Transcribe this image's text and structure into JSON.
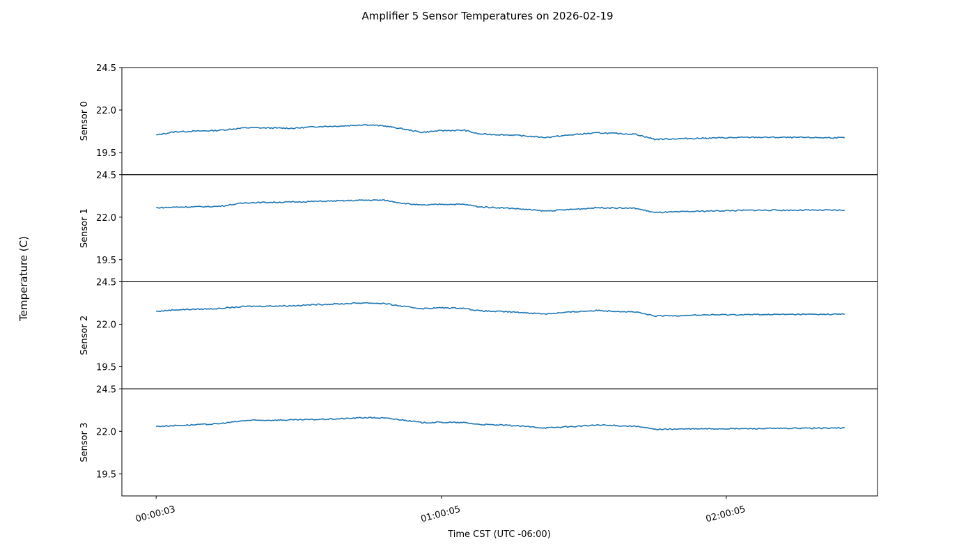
{
  "chart_data": {
    "type": "line",
    "title": "Amplifier 5 Sensor Temperatures on 2026-02-19",
    "xlabel": "Time CST (UTC -06:00)",
    "ylabel": "Temperature (C)",
    "x_ticks": [
      "00:00:03",
      "01:00:05",
      "02:00:05"
    ],
    "y_ticks": [
      "24.5",
      "22.0",
      "19.5"
    ],
    "ylim": [
      18.2,
      24.5
    ],
    "xlim": [
      "-00:07:10",
      "02:31:55"
    ],
    "grid": false,
    "line_color": "#1f77b4",
    "x": [
      "00:00:03",
      "00:04:00",
      "00:13:00",
      "00:19:00",
      "00:29:00",
      "00:34:00",
      "00:39:00",
      "00:44:00",
      "00:48:00",
      "00:52:00",
      "00:56:00",
      "01:00:00",
      "01:05:00",
      "01:08:00",
      "01:15:00",
      "01:22:00",
      "01:29:00",
      "01:33:00",
      "01:41:00",
      "01:45:00",
      "01:56:00",
      "02:06:00",
      "02:25:00"
    ],
    "panels": [
      {
        "label": "Sensor 0",
        "values": [
          20.53,
          20.72,
          20.8,
          20.96,
          20.93,
          21.03,
          21.06,
          21.14,
          21.07,
          20.89,
          20.69,
          20.79,
          20.81,
          20.59,
          20.53,
          20.39,
          20.58,
          20.66,
          20.58,
          20.28,
          20.35,
          20.4,
          20.37
        ]
      },
      {
        "label": "Sensor 1",
        "values": [
          22.55,
          22.59,
          22.63,
          22.85,
          22.89,
          22.93,
          22.96,
          23.0,
          23.0,
          22.82,
          22.7,
          22.76,
          22.75,
          22.61,
          22.52,
          22.36,
          22.48,
          22.56,
          22.52,
          22.27,
          22.36,
          22.41,
          22.41
        ]
      },
      {
        "label": "Sensor 2",
        "values": [
          22.75,
          22.85,
          22.92,
          23.05,
          23.09,
          23.16,
          23.2,
          23.26,
          23.22,
          23.05,
          22.92,
          22.97,
          22.94,
          22.79,
          22.72,
          22.61,
          22.75,
          22.81,
          22.72,
          22.48,
          22.55,
          22.57,
          22.59
        ]
      },
      {
        "label": "Sensor 3",
        "values": [
          22.29,
          22.34,
          22.44,
          22.64,
          22.67,
          22.7,
          22.74,
          22.81,
          22.78,
          22.67,
          22.51,
          22.53,
          22.51,
          22.41,
          22.34,
          22.2,
          22.3,
          22.37,
          22.3,
          22.12,
          22.15,
          22.16,
          22.2
        ]
      }
    ]
  }
}
